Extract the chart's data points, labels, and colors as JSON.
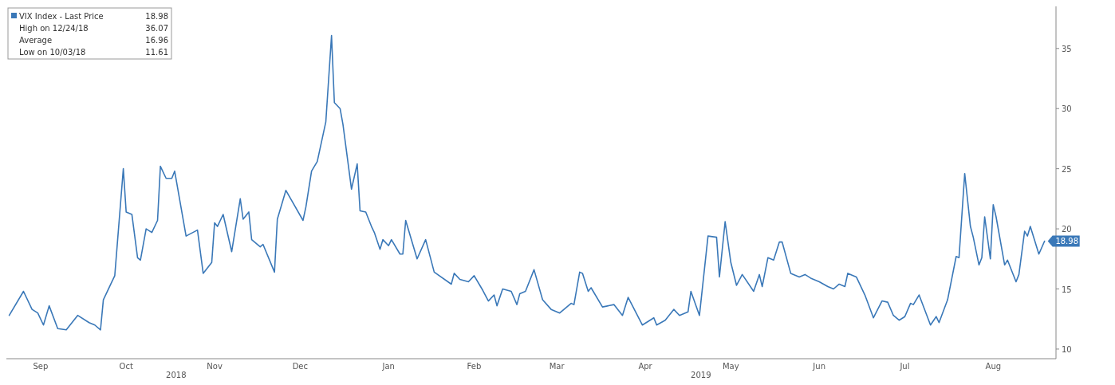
{
  "chart_data": {
    "type": "line",
    "x": [
      "2018-09-05",
      "2018-09-10",
      "2018-09-13",
      "2018-09-15",
      "2018-09-17",
      "2018-09-19",
      "2018-09-22",
      "2018-09-25",
      "2018-09-29",
      "2018-10-03",
      "2018-10-05",
      "2018-10-07",
      "2018-10-08",
      "2018-10-11",
      "2018-10-12",
      "2018-10-15",
      "2018-10-16",
      "2018-10-18",
      "2018-10-20",
      "2018-10-21",
      "2018-10-23",
      "2018-10-25",
      "2018-10-27",
      "2018-10-28",
      "2018-10-30",
      "2018-11-01",
      "2018-11-02",
      "2018-11-06",
      "2018-11-10",
      "2018-11-12",
      "2018-11-15",
      "2018-11-16",
      "2018-11-17",
      "2018-11-19",
      "2018-11-22",
      "2018-11-25",
      "2018-11-26",
      "2018-11-28",
      "2018-11-29",
      "2018-12-02",
      "2018-12-03",
      "2018-12-07",
      "2018-12-08",
      "2018-12-11",
      "2018-12-17",
      "2018-12-18",
      "2018-12-20",
      "2018-12-22",
      "2018-12-25",
      "2018-12-27",
      "2018-12-28",
      "2018-12-30",
      "2018-12-31",
      "2019-01-03",
      "2019-01-05",
      "2019-01-06",
      "2019-01-08",
      "2019-01-10",
      "2019-01-11",
      "2019-01-13",
      "2019-01-14",
      "2019-01-16",
      "2019-01-17",
      "2019-01-20",
      "2019-01-21",
      "2019-01-22",
      "2019-01-26",
      "2019-01-29",
      "2019-02-01",
      "2019-02-07",
      "2019-02-08",
      "2019-02-10",
      "2019-02-13",
      "2019-02-15",
      "2019-02-18",
      "2019-02-20",
      "2019-02-22",
      "2019-02-23",
      "2019-02-25",
      "2019-02-28",
      "2019-03-02",
      "2019-03-03",
      "2019-03-05",
      "2019-03-08",
      "2019-03-11",
      "2019-03-14",
      "2019-03-17",
      "2019-03-21",
      "2019-03-22",
      "2019-03-24",
      "2019-03-25",
      "2019-03-27",
      "2019-03-28",
      "2019-04-01",
      "2019-04-05",
      "2019-04-08",
      "2019-04-10",
      "2019-04-15",
      "2019-04-17",
      "2019-04-19",
      "2019-04-20",
      "2019-04-23",
      "2019-04-26",
      "2019-04-28",
      "2019-05-01",
      "2019-05-02",
      "2019-05-05",
      "2019-05-08",
      "2019-05-11",
      "2019-05-12",
      "2019-05-14",
      "2019-05-16",
      "2019-05-18",
      "2019-05-20",
      "2019-05-24",
      "2019-05-26",
      "2019-05-27",
      "2019-05-29",
      "2019-05-31",
      "2019-06-02",
      "2019-06-03",
      "2019-06-06",
      "2019-06-09",
      "2019-06-11",
      "2019-06-13",
      "2019-06-16",
      "2019-06-19",
      "2019-06-21",
      "2019-06-23",
      "2019-06-25",
      "2019-06-26",
      "2019-06-29",
      "2019-07-02",
      "2019-07-05",
      "2019-07-08",
      "2019-07-10",
      "2019-07-12",
      "2019-07-14",
      "2019-07-16",
      "2019-07-18",
      "2019-07-19",
      "2019-07-21",
      "2019-07-25",
      "2019-07-27",
      "2019-07-28",
      "2019-07-31",
      "2019-08-03",
      "2019-08-04",
      "2019-08-06",
      "2019-08-08",
      "2019-08-09",
      "2019-08-11",
      "2019-08-12",
      "2019-08-13",
      "2019-08-15",
      "2019-08-16",
      "2019-08-17",
      "2019-08-20",
      "2019-08-21",
      "2019-08-24",
      "2019-08-25",
      "2019-08-27",
      "2019-08-28",
      "2019-08-29",
      "2019-09-01",
      "2019-09-03"
    ],
    "series": [
      {
        "name": "VIX Index - Last Price",
        "color": "#3a78b8",
        "values": [
          12.8,
          14.8,
          13.3,
          13.0,
          12.0,
          13.6,
          11.7,
          11.6,
          12.8,
          12.2,
          12.0,
          11.6,
          14.1,
          15.6,
          16.1,
          25.0,
          21.4,
          21.2,
          17.6,
          17.4,
          20.0,
          19.7,
          20.7,
          25.2,
          24.2,
          24.2,
          24.8,
          19.4,
          19.9,
          16.3,
          17.2,
          20.5,
          20.2,
          21.2,
          18.1,
          22.5,
          20.8,
          21.4,
          19.1,
          18.5,
          18.7,
          16.4,
          20.8,
          23.2,
          20.7,
          21.8,
          24.8,
          25.6,
          28.9,
          36.07,
          30.5,
          30.0,
          28.7,
          23.3,
          25.4,
          21.5,
          21.4,
          20.2,
          19.7,
          18.3,
          19.1,
          18.6,
          19.1,
          17.9,
          17.9,
          20.7,
          17.5,
          19.1,
          16.4,
          15.4,
          16.3,
          15.8,
          15.6,
          16.1,
          14.9,
          14.0,
          14.5,
          13.6,
          15.0,
          14.8,
          13.7,
          14.6,
          14.8,
          16.6,
          14.1,
          13.3,
          13.0,
          13.8,
          13.7,
          16.4,
          16.3,
          14.8,
          15.1,
          13.5,
          13.7,
          12.8,
          14.3,
          12.0,
          12.3,
          12.6,
          12.0,
          12.4,
          13.3,
          12.8,
          13.1,
          14.8,
          12.8,
          19.4,
          19.3,
          16.0,
          20.6,
          17.2,
          15.3,
          16.2,
          14.8,
          16.2,
          15.2,
          17.6,
          17.4,
          18.9,
          18.9,
          16.3,
          16.0,
          16.2,
          15.9,
          15.6,
          15.2,
          15.0,
          15.4,
          15.2,
          16.3,
          16.0,
          14.5,
          12.6,
          14.0,
          13.9,
          12.8,
          12.4,
          12.7,
          13.8,
          13.7,
          14.5,
          12.0,
          12.7,
          12.2,
          14.1,
          17.7,
          17.6,
          24.6,
          20.2,
          19.3,
          17.0,
          17.6,
          21.0,
          17.5,
          22.0,
          21.0,
          17.0,
          17.4,
          15.6,
          16.2,
          19.8,
          19.4,
          20.2,
          17.9,
          18.98
        ],
        "value_labels": [
          null,
          null,
          null,
          null,
          null,
          null,
          null,
          null,
          null,
          null,
          null,
          null,
          null,
          null,
          null,
          null,
          null,
          null,
          null,
          null,
          null,
          null,
          null,
          null,
          null,
          null,
          null,
          null,
          null,
          null,
          null,
          null,
          null,
          null,
          null,
          null,
          null,
          null,
          null,
          null,
          null,
          null,
          null,
          null,
          null,
          null,
          null,
          null,
          null,
          null,
          null,
          null,
          null,
          null,
          null,
          null,
          null,
          null,
          null,
          null,
          null,
          null,
          null,
          null,
          null,
          null,
          null,
          null,
          null,
          null,
          null,
          null,
          null,
          null,
          null,
          null,
          null,
          null,
          null,
          null,
          null,
          null,
          null,
          null,
          null,
          null,
          null,
          null,
          null,
          null,
          null,
          null,
          null,
          null,
          null,
          null,
          null,
          null,
          null,
          null,
          null,
          null,
          null,
          null,
          null,
          null,
          null,
          null,
          null,
          null,
          null,
          null,
          null,
          null,
          null,
          null,
          null,
          null,
          null,
          null,
          null,
          null,
          null,
          null,
          null,
          null,
          null,
          null,
          null,
          null,
          null,
          null,
          null,
          null,
          null,
          null,
          null,
          null,
          null,
          null,
          null,
          null,
          null,
          null,
          null,
          null,
          null,
          null,
          null,
          null,
          null,
          null,
          null,
          null,
          null,
          null,
          null,
          null,
          null,
          null,
          null,
          null,
          null,
          null,
          null,
          "18.98"
        ]
      }
    ],
    "xlim": [
      "2018-09-04",
      "2019-09-07"
    ],
    "xticks": [
      {
        "value": "2018-09-16",
        "label": "Sep"
      },
      {
        "value": "2018-10-16",
        "label": "Oct"
      },
      {
        "value": "2018-11-16",
        "label": "Nov"
      },
      {
        "value": "2018-12-16",
        "label": "Dec"
      },
      {
        "value": "2019-01-16",
        "label": "Jan"
      },
      {
        "value": "2019-02-15",
        "label": "Feb"
      },
      {
        "value": "2019-03-16",
        "label": "Mar"
      },
      {
        "value": "2019-04-16",
        "label": "Apr"
      },
      {
        "value": "2019-05-16",
        "label": "May"
      },
      {
        "value": "2019-06-16",
        "label": "Jun"
      },
      {
        "value": "2019-07-16",
        "label": "Jul"
      },
      {
        "value": "2019-08-16",
        "label": "Aug"
      }
    ],
    "ylim": [
      9.2,
      38.5
    ],
    "yticks": [
      10,
      15,
      20,
      25,
      30,
      35
    ],
    "legend": "top left",
    "annotations": [
      "High on 12/24/18 36.07",
      "Average 16.96",
      "Low on 10/03/18 11.61",
      "2018",
      "2019"
    ]
  }
}
